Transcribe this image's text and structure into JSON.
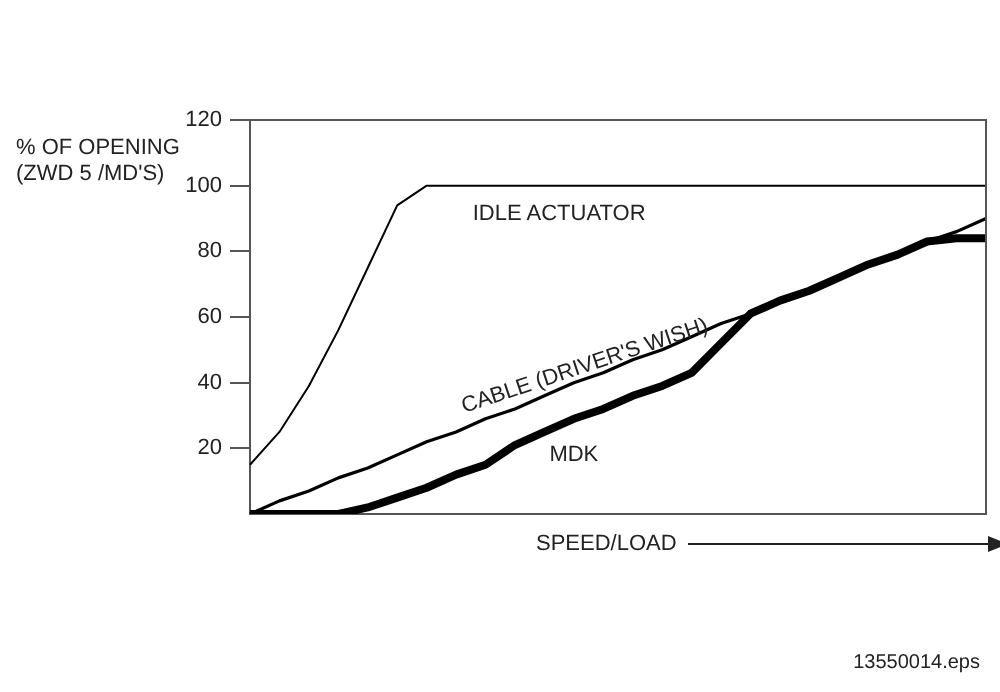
{
  "chart_data": {
    "type": "line",
    "ylabel": "% OF OPENING (ZWD 5 /MD'S)",
    "xlabel": "SPEED/LOAD",
    "annotations": [
      "13550014.eps"
    ],
    "categories": [
      null,
      null,
      null,
      null,
      null,
      null,
      null,
      null,
      null,
      null,
      null,
      null,
      null,
      null,
      null,
      null,
      null,
      null,
      null,
      null,
      null,
      null,
      null,
      null,
      null,
      null
    ],
    "ylim": [
      0,
      120
    ],
    "yticks": [
      20,
      40,
      60,
      80,
      100,
      120
    ],
    "tick_labels": "y",
    "grid": false,
    "legend": false,
    "marker": "none",
    "line_style": "solid",
    "series": [
      {
        "name": "IDLE ACTUATOR",
        "color": "#000000",
        "values": [
          15,
          25,
          39,
          56,
          75,
          94,
          100,
          100,
          100,
          100,
          100,
          100,
          100,
          100,
          100,
          100,
          100,
          100,
          100,
          100,
          100,
          100,
          100,
          100,
          100,
          100
        ]
      },
      {
        "name": "CABLE (DRIVER'S WISH)",
        "color": "#000000",
        "values": [
          0,
          4,
          7,
          11,
          14,
          18,
          22,
          25,
          29,
          32,
          36,
          40,
          43,
          47,
          50,
          54,
          58,
          61,
          65,
          68,
          72,
          76,
          79,
          83,
          86,
          90
        ]
      },
      {
        "name": "MDK",
        "color": "#000000",
        "values": [
          0,
          0,
          0,
          0,
          2,
          5,
          8,
          12,
          15,
          21,
          25,
          29,
          32,
          36,
          39,
          43,
          52,
          61,
          65,
          68,
          72,
          76,
          79,
          83,
          84,
          84
        ]
      }
    ]
  }
}
